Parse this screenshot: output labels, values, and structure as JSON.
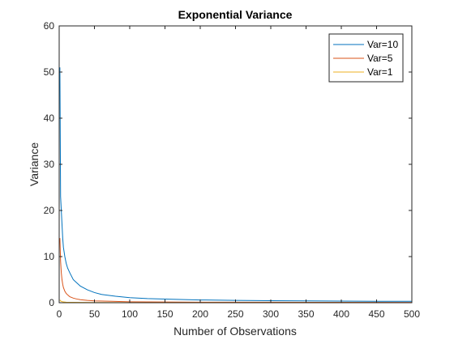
{
  "chart_data": {
    "type": "line",
    "title": "Exponential Variance",
    "xlabel": "Number of Observations",
    "ylabel": "Variance",
    "xlim": [
      0,
      500
    ],
    "ylim": [
      0,
      60
    ],
    "xticks": [
      0,
      50,
      100,
      150,
      200,
      250,
      300,
      350,
      400,
      450,
      500
    ],
    "yticks": [
      0,
      10,
      20,
      30,
      40,
      50,
      60
    ],
    "grid": false,
    "legend_position": "top-right",
    "series": [
      {
        "name": "Var=10",
        "color": "#0072BD",
        "x": [
          1,
          2,
          3,
          4,
          5,
          6,
          8,
          10,
          12,
          15,
          20,
          25,
          30,
          40,
          50,
          60,
          80,
          100,
          125,
          150,
          200,
          250,
          300,
          350,
          400,
          450,
          500
        ],
        "y": [
          51,
          23,
          20,
          17,
          14,
          12,
          10,
          8.5,
          7.5,
          6.5,
          5,
          4.3,
          3.6,
          2.8,
          2.2,
          1.8,
          1.4,
          1.1,
          0.9,
          0.8,
          0.6,
          0.5,
          0.45,
          0.4,
          0.35,
          0.3,
          0.3
        ]
      },
      {
        "name": "Var=5",
        "color": "#D95319",
        "x": [
          1,
          2,
          3,
          4,
          5,
          6,
          8,
          10,
          12,
          15,
          20,
          25,
          30,
          40,
          50,
          75,
          100,
          150,
          200,
          300,
          400,
          500
        ],
        "y": [
          14,
          9,
          6.5,
          5,
          4,
          3.3,
          2.5,
          2,
          1.7,
          1.3,
          1,
          0.8,
          0.65,
          0.5,
          0.4,
          0.3,
          0.2,
          0.15,
          0.12,
          0.1,
          0.08,
          0.07
        ]
      },
      {
        "name": "Var=1",
        "color": "#EDB120",
        "x": [
          1,
          2,
          3,
          5,
          10,
          20,
          50,
          100,
          200,
          300,
          400,
          500
        ],
        "y": [
          0.6,
          0.4,
          0.3,
          0.2,
          0.12,
          0.08,
          0.05,
          0.03,
          0.02,
          0.015,
          0.012,
          0.01
        ]
      }
    ]
  }
}
